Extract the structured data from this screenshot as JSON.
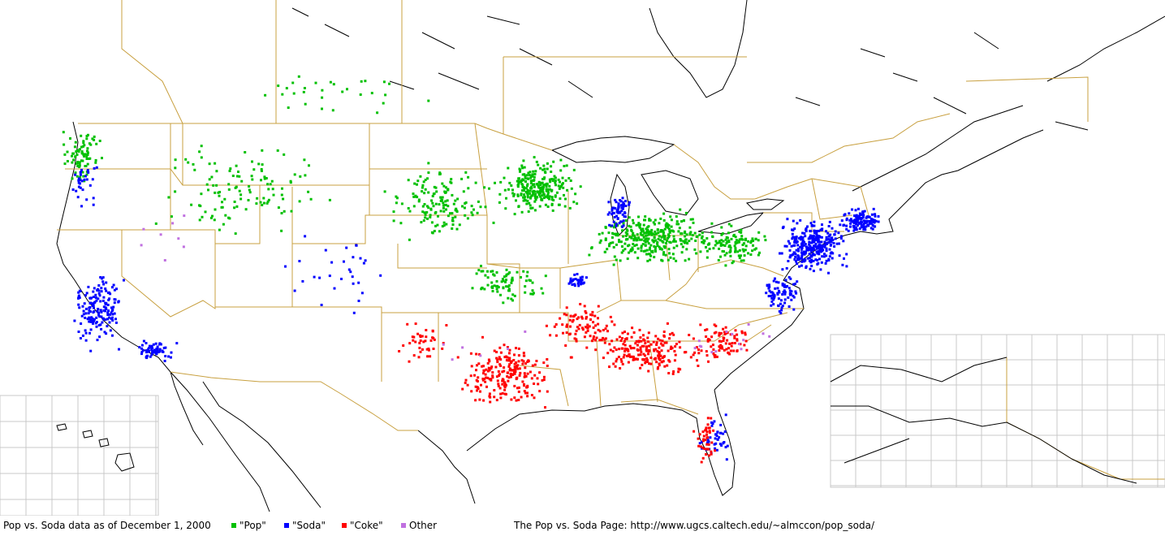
{
  "footer": {
    "caption": "Pop vs. Soda data as of December 1, 2000",
    "source": "The Pop vs. Soda Page:  http://www.ugcs.caltech.edu/~almccon/pop_soda/"
  },
  "legend": [
    {
      "label": "\"Pop\"",
      "color": "#00c000"
    },
    {
      "label": "\"Soda\"",
      "color": "#0000ff"
    },
    {
      "label": "\"Coke\"",
      "color": "#ff0000"
    },
    {
      "label": "Other",
      "color": "#c070e0"
    }
  ],
  "colors": {
    "state_border": "#c8a040",
    "coast": "#000000",
    "inset_grid": "#c8c8c8"
  }
}
